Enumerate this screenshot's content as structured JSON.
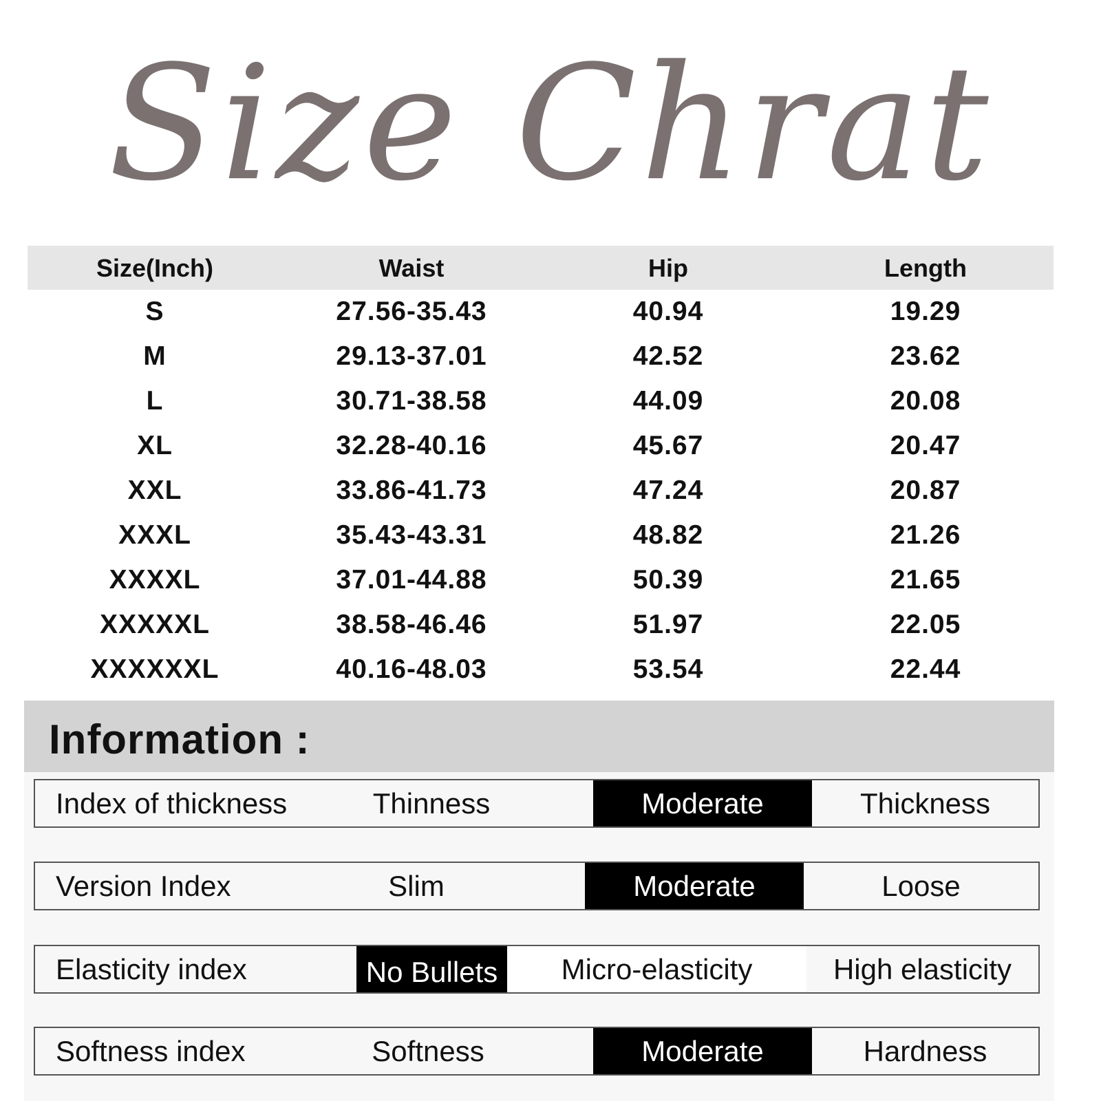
{
  "title": "Size Chrat",
  "table": {
    "headers": [
      "Size(Inch)",
      "Waist",
      "Hip",
      "Length"
    ],
    "rows": [
      [
        "S",
        "27.56-35.43",
        "40.94",
        "19.29"
      ],
      [
        "M",
        "29.13-37.01",
        "42.52",
        "23.62"
      ],
      [
        "L",
        "30.71-38.58",
        "44.09",
        "20.08"
      ],
      [
        "XL",
        "32.28-40.16",
        "45.67",
        "20.47"
      ],
      [
        "XXL",
        "33.86-41.73",
        "47.24",
        "20.87"
      ],
      [
        "XXXL",
        "35.43-43.31",
        "48.82",
        "21.26"
      ],
      [
        "XXXXL",
        "37.01-44.88",
        "50.39",
        "21.65"
      ],
      [
        "XXXXXL",
        "38.58-46.46",
        "51.97",
        "22.05"
      ],
      [
        "XXXXXXL",
        "40.16-48.03",
        "53.54",
        "22.44"
      ]
    ]
  },
  "information": {
    "title": "Information :",
    "rows": [
      {
        "label": "Index of thickness",
        "options": [
          "Thinness",
          "Moderate",
          "Thickness"
        ],
        "selected": "Moderate"
      },
      {
        "label": "Version Index",
        "options": [
          "Slim",
          "Moderate",
          "Loose"
        ],
        "selected": "Moderate"
      },
      {
        "label": "Elasticity index",
        "options": [
          "No Bullets",
          "Micro-elasticity",
          "High elasticity"
        ],
        "selected": "No Bullets"
      },
      {
        "label": "Softness index",
        "options": [
          "Softness",
          "Moderate",
          "Hardness"
        ],
        "selected": "Moderate"
      }
    ]
  },
  "colors": {
    "title": "#7b7171",
    "header_band": "#e6e6e6",
    "info_band": "#d3d3d3",
    "selected": "#000000"
  }
}
